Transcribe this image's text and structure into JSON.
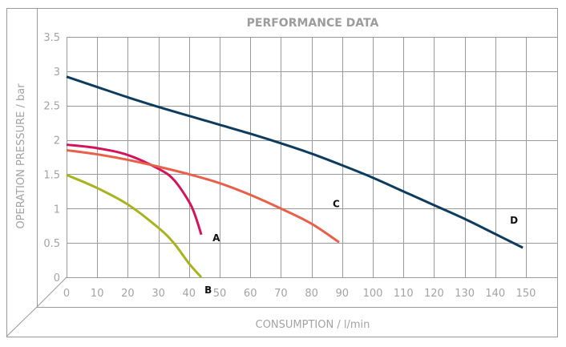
{
  "chart_data": {
    "type": "line",
    "title": "PERFORMANCE DATA",
    "xlabel": "CONSUMPTION / l/min",
    "ylabel": "OPERATION PRESSURE / bar",
    "xlim": [
      0,
      150
    ],
    "ylim": [
      0,
      3.5
    ],
    "xticks": [
      "0",
      "10",
      "20",
      "30",
      "40",
      "50",
      "60",
      "70",
      "80",
      "90",
      "100",
      "110",
      "120",
      "130",
      "140",
      "150"
    ],
    "yticks": [
      "0",
      "0.5",
      "1",
      "1.5",
      "2",
      "2.5",
      "3",
      "3.5"
    ],
    "grid": true,
    "series": [
      {
        "name": "A",
        "color": "#d4145a",
        "x": [
          0,
          10,
          20,
          30,
          35,
          40,
          42,
          44
        ],
        "y": [
          1.93,
          1.88,
          1.78,
          1.58,
          1.42,
          1.1,
          0.9,
          0.62
        ]
      },
      {
        "name": "B",
        "color": "#a8b41e",
        "x": [
          0,
          10,
          20,
          30,
          35,
          40,
          44
        ],
        "y": [
          1.49,
          1.3,
          1.06,
          0.72,
          0.5,
          0.2,
          0
        ]
      },
      {
        "name": "C",
        "color": "#e8604a",
        "x": [
          0,
          10,
          20,
          30,
          40,
          50,
          60,
          70,
          80,
          89
        ],
        "y": [
          1.85,
          1.79,
          1.71,
          1.61,
          1.5,
          1.37,
          1.2,
          1.0,
          0.78,
          0.51
        ]
      },
      {
        "name": "D",
        "color": "#0d3c5e",
        "x": [
          0,
          10,
          20,
          30,
          40,
          50,
          60,
          70,
          80,
          90,
          100,
          110,
          120,
          130,
          140,
          149
        ],
        "y": [
          2.92,
          2.77,
          2.62,
          2.48,
          2.35,
          2.22,
          2.09,
          1.95,
          1.8,
          1.63,
          1.45,
          1.25,
          1.05,
          0.85,
          0.63,
          0.43
        ]
      }
    ]
  }
}
